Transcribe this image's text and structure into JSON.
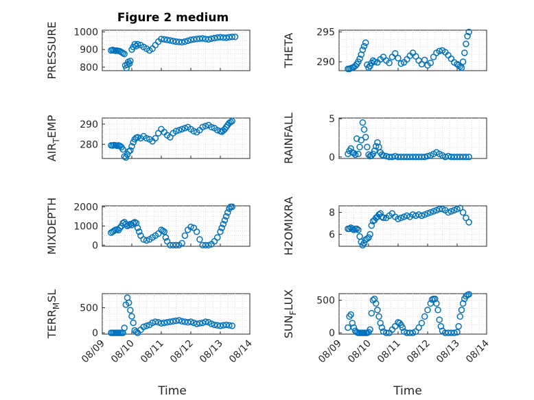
{
  "figure": {
    "title": "Figure 2 medium",
    "xlabel": "Time"
  },
  "colors": {
    "marker": "#0072bd",
    "axes": "#262626",
    "grid": "#dcdcdc"
  },
  "chart_data": [
    {
      "type": "scatter",
      "ylabel": "PRESSURE",
      "ylim": [
        780,
        1010
      ],
      "yticks": [
        800,
        900,
        1000
      ],
      "xlim": [
        9,
        14
      ],
      "grid": true,
      "series": [
        {
          "x": [
            9.3,
            9.35,
            9.4,
            9.45,
            9.5,
            9.55,
            9.6,
            9.65,
            9.7,
            9.75,
            9.78,
            9.82,
            9.85,
            9.88,
            9.92,
            9.95,
            10.0,
            10.05,
            10.1,
            10.15,
            10.2,
            10.3,
            10.4,
            10.5,
            10.6,
            10.7,
            10.8,
            10.9,
            11.0,
            11.1,
            11.2,
            11.3,
            11.4,
            11.5,
            11.6,
            11.7,
            11.8,
            11.9,
            12.0,
            12.1,
            12.2,
            12.3,
            12.4,
            12.5,
            12.6,
            12.7,
            12.8,
            12.9,
            13.0,
            13.1,
            13.2,
            13.3,
            13.4,
            13.5
          ],
          "y": [
            895,
            898,
            895,
            893,
            894,
            892,
            890,
            885,
            880,
            875,
            810,
            795,
            815,
            830,
            820,
            835,
            900,
            915,
            930,
            920,
            930,
            925,
            915,
            905,
            895,
            905,
            925,
            945,
            960,
            958,
            955,
            952,
            948,
            945,
            943,
            942,
            945,
            950,
            955,
            958,
            960,
            962,
            963,
            960,
            958,
            962,
            965,
            968,
            970,
            968,
            967,
            970,
            972,
            972
          ]
        }
      ]
    },
    {
      "type": "scatter",
      "ylabel": "THETA",
      "ylim": [
        288.5,
        295.3
      ],
      "yticks": [
        290,
        295
      ],
      "xlim": [
        9,
        14
      ],
      "grid": true,
      "series": [
        {
          "x": [
            9.3,
            9.35,
            9.4,
            9.45,
            9.5,
            9.55,
            9.6,
            9.65,
            9.7,
            9.75,
            9.8,
            9.85,
            9.9,
            9.95,
            10.0,
            10.05,
            10.1,
            10.15,
            10.2,
            10.3,
            10.4,
            10.5,
            10.6,
            10.7,
            10.8,
            10.9,
            11.0,
            11.1,
            11.2,
            11.3,
            11.4,
            11.5,
            11.6,
            11.7,
            11.8,
            11.9,
            12.0,
            12.1,
            12.2,
            12.3,
            12.4,
            12.5,
            12.6,
            12.7,
            12.8,
            12.9,
            13.0,
            13.05,
            13.1,
            13.15,
            13.2,
            13.25,
            13.3,
            13.35,
            13.4
          ],
          "y": [
            288.8,
            288.8,
            288.9,
            289.0,
            289.1,
            289.3,
            289.6,
            290.0,
            290.5,
            291.2,
            292.0,
            292.6,
            293.2,
            289.5,
            289.0,
            289.3,
            289.8,
            290.2,
            290.0,
            289.9,
            290.4,
            290.8,
            290.2,
            289.8,
            290.8,
            291.4,
            290.6,
            289.7,
            289.9,
            290.4,
            291.0,
            291.5,
            290.9,
            290.2,
            289.6,
            290.3,
            289.4,
            289.8,
            290.8,
            291.5,
            291.8,
            291.9,
            291.6,
            291.1,
            290.5,
            289.9,
            289.6,
            289.4,
            289.2,
            289.0,
            290.0,
            291.5,
            293.0,
            294.3,
            295.0
          ]
        }
      ]
    },
    {
      "type": "scatter",
      "ylabel": "AIR_TEMP",
      "ylim": [
        273,
        293
      ],
      "yticks": [
        280,
        290
      ],
      "xlim": [
        9,
        14
      ],
      "grid": true,
      "series": [
        {
          "x": [
            9.3,
            9.35,
            9.4,
            9.45,
            9.5,
            9.55,
            9.6,
            9.65,
            9.7,
            9.75,
            9.8,
            9.85,
            9.9,
            9.95,
            10.0,
            10.05,
            10.1,
            10.15,
            10.2,
            10.3,
            10.4,
            10.5,
            10.6,
            10.7,
            10.8,
            10.9,
            11.0,
            11.1,
            11.2,
            11.3,
            11.4,
            11.5,
            11.6,
            11.7,
            11.8,
            11.9,
            12.0,
            12.1,
            12.2,
            12.3,
            12.4,
            12.5,
            12.6,
            12.7,
            12.8,
            12.9,
            13.0,
            13.05,
            13.1,
            13.15,
            13.2,
            13.25,
            13.3,
            13.35,
            13.4
          ],
          "y": [
            279.5,
            279.4,
            279.6,
            279.5,
            279.3,
            279.5,
            279.2,
            278.6,
            277.5,
            274.0,
            273.5,
            275.0,
            276.5,
            277.0,
            279.0,
            281.0,
            282.5,
            283.2,
            283.5,
            283.0,
            284.0,
            283.0,
            282.5,
            281.5,
            283.0,
            285.5,
            287.5,
            286.0,
            284.5,
            283.5,
            285.5,
            286.5,
            287.0,
            287.5,
            288.0,
            288.5,
            287.5,
            286.5,
            286.0,
            287.0,
            288.5,
            289.0,
            289.5,
            288.5,
            288.0,
            287.0,
            286.5,
            286.2,
            286.8,
            287.5,
            288.5,
            289.5,
            290.5,
            291.0,
            291.5
          ]
        }
      ]
    },
    {
      "type": "scatter",
      "ylabel": "RAINFALL",
      "ylim": [
        -0.2,
        5.1
      ],
      "yticks": [
        0,
        5
      ],
      "xlim": [
        9,
        14
      ],
      "grid": true,
      "series": [
        {
          "x": [
            9.3,
            9.35,
            9.4,
            9.45,
            9.5,
            9.55,
            9.6,
            9.65,
            9.7,
            9.75,
            9.8,
            9.85,
            9.9,
            9.95,
            10.0,
            10.05,
            10.1,
            10.15,
            10.2,
            10.25,
            10.3,
            10.35,
            10.4,
            10.45,
            10.5,
            10.6,
            10.7,
            10.8,
            10.9,
            11.0,
            11.1,
            11.2,
            11.3,
            11.4,
            11.5,
            11.6,
            11.7,
            11.8,
            11.9,
            12.0,
            12.1,
            12.2,
            12.3,
            12.4,
            12.5,
            12.6,
            12.7,
            12.8,
            12.9,
            13.0,
            13.1,
            13.2,
            13.3,
            13.4
          ],
          "y": [
            0.4,
            0.8,
            1.1,
            0.6,
            0.5,
            0.3,
            2.4,
            0.4,
            1.3,
            2.2,
            4.5,
            3.6,
            2.6,
            1.3,
            0.3,
            0.1,
            0.2,
            0.4,
            0.8,
            1.4,
            1.9,
            1.3,
            0.6,
            0.3,
            0.2,
            0.1,
            0.0,
            0.0,
            0.1,
            0.0,
            0.0,
            0.0,
            0.0,
            0.0,
            0.0,
            0.0,
            0.0,
            0.0,
            0.0,
            0.1,
            0.2,
            0.4,
            0.6,
            0.4,
            0.2,
            0.0,
            0.1,
            0.0,
            0.0,
            0.0,
            0.0,
            0.0,
            0.0,
            0.0
          ]
        }
      ]
    },
    {
      "type": "scatter",
      "ylabel": "MIXDEPTH",
      "ylim": [
        -60,
        2050
      ],
      "yticks": [
        0,
        1000,
        2000
      ],
      "xlim": [
        9,
        14
      ],
      "grid": true,
      "series": [
        {
          "x": [
            9.3,
            9.35,
            9.4,
            9.45,
            9.5,
            9.55,
            9.6,
            9.65,
            9.7,
            9.75,
            9.8,
            9.85,
            9.9,
            9.95,
            10.0,
            10.05,
            10.1,
            10.15,
            10.2,
            10.25,
            10.3,
            10.4,
            10.5,
            10.6,
            10.7,
            10.8,
            10.9,
            11.0,
            11.05,
            11.1,
            11.15,
            11.2,
            11.3,
            11.4,
            11.5,
            11.6,
            11.7,
            11.8,
            11.9,
            12.0,
            12.1,
            12.2,
            12.3,
            12.4,
            12.5,
            12.6,
            12.7,
            12.8,
            12.9,
            13.0,
            13.05,
            13.1,
            13.15,
            13.2,
            13.25,
            13.3,
            13.35,
            13.4
          ],
          "y": [
            650,
            700,
            750,
            800,
            820,
            780,
            900,
            1000,
            1150,
            1200,
            1100,
            1000,
            1050,
            1100,
            1050,
            1150,
            1200,
            1150,
            900,
            700,
            500,
            300,
            250,
            300,
            400,
            500,
            600,
            800,
            750,
            700,
            400,
            200,
            0,
            0,
            0,
            0,
            100,
            500,
            800,
            950,
            900,
            700,
            300,
            0,
            0,
            0,
            50,
            200,
            400,
            700,
            900,
            1100,
            1300,
            1500,
            1700,
            1900,
            2000,
            2000
          ]
        }
      ]
    },
    {
      "type": "scatter",
      "ylabel": "H2OMIXRA",
      "ylim": [
        4.9,
        8.6
      ],
      "yticks": [
        6,
        8
      ],
      "xlim": [
        9,
        14
      ],
      "grid": true,
      "series": [
        {
          "x": [
            9.3,
            9.35,
            9.4,
            9.45,
            9.5,
            9.55,
            9.6,
            9.65,
            9.7,
            9.75,
            9.8,
            9.85,
            9.9,
            9.95,
            10.0,
            10.05,
            10.1,
            10.15,
            10.2,
            10.25,
            10.3,
            10.35,
            10.4,
            10.45,
            10.5,
            10.6,
            10.7,
            10.8,
            10.9,
            11.0,
            11.1,
            11.2,
            11.3,
            11.4,
            11.5,
            11.6,
            11.7,
            11.8,
            11.9,
            12.0,
            12.1,
            12.2,
            12.3,
            12.4,
            12.5,
            12.6,
            12.7,
            12.8,
            12.9,
            13.0,
            13.1,
            13.2,
            13.3,
            13.4
          ],
          "y": [
            6.5,
            6.5,
            6.6,
            6.5,
            6.4,
            6.5,
            6.5,
            6.4,
            5.8,
            5.3,
            5.0,
            5.2,
            5.5,
            5.6,
            5.7,
            6.0,
            6.8,
            7.2,
            7.3,
            7.5,
            7.6,
            7.8,
            7.9,
            7.6,
            7.5,
            7.5,
            7.7,
            7.9,
            7.6,
            7.4,
            7.5,
            7.6,
            7.7,
            7.6,
            7.8,
            7.7,
            7.8,
            7.7,
            7.8,
            7.9,
            8.0,
            8.1,
            8.2,
            8.3,
            8.3,
            8.2,
            8.0,
            8.1,
            8.2,
            8.3,
            8.4,
            8.0,
            7.5,
            7.1
          ]
        }
      ]
    },
    {
      "type": "scatter",
      "ylabel": "TERR_MSL",
      "ylim": [
        -25,
        780
      ],
      "yticks": [
        0,
        500
      ],
      "xlim": [
        9,
        14
      ],
      "grid": true,
      "series": [
        {
          "x": [
            9.3,
            9.35,
            9.4,
            9.45,
            9.5,
            9.55,
            9.6,
            9.65,
            9.7,
            9.75,
            9.8,
            9.85,
            9.9,
            9.95,
            10.0,
            10.05,
            10.1,
            10.15,
            10.2,
            10.3,
            10.4,
            10.5,
            10.6,
            10.7,
            10.8,
            10.9,
            11.0,
            11.1,
            11.2,
            11.3,
            11.4,
            11.5,
            11.6,
            11.7,
            11.8,
            11.9,
            12.0,
            12.1,
            12.2,
            12.3,
            12.4,
            12.5,
            12.6,
            12.7,
            12.8,
            12.9,
            13.0,
            13.1,
            13.2,
            13.3,
            13.4
          ],
          "y": [
            0,
            0,
            0,
            0,
            0,
            0,
            0,
            0,
            0,
            100,
            560,
            700,
            600,
            450,
            330,
            200,
            50,
            20,
            0,
            60,
            120,
            140,
            160,
            200,
            220,
            210,
            190,
            200,
            210,
            220,
            230,
            240,
            250,
            230,
            220,
            210,
            220,
            200,
            180,
            190,
            200,
            220,
            210,
            180,
            160,
            150,
            140,
            150,
            160,
            150,
            140
          ]
        }
      ]
    },
    {
      "type": "scatter",
      "ylabel": "SUN_FLUX",
      "ylim": [
        -20,
        600
      ],
      "yticks": [
        0,
        500
      ],
      "xlim": [
        9,
        14
      ],
      "grid": true,
      "series": [
        {
          "x": [
            9.3,
            9.35,
            9.4,
            9.45,
            9.5,
            9.55,
            9.6,
            9.65,
            9.7,
            9.75,
            9.8,
            9.85,
            9.9,
            9.95,
            10.0,
            10.05,
            10.1,
            10.15,
            10.2,
            10.25,
            10.3,
            10.35,
            10.4,
            10.45,
            10.5,
            10.6,
            10.7,
            10.8,
            10.9,
            11.0,
            11.05,
            11.1,
            11.15,
            11.2,
            11.3,
            11.4,
            11.5,
            11.6,
            11.7,
            11.8,
            11.9,
            12.0,
            12.1,
            12.15,
            12.2,
            12.25,
            12.3,
            12.35,
            12.4,
            12.45,
            12.5,
            12.6,
            12.7,
            12.8,
            12.9,
            13.0,
            13.05,
            13.1,
            13.15,
            13.2,
            13.25,
            13.3,
            13.35,
            13.4
          ],
          "y": [
            80,
            250,
            280,
            150,
            80,
            30,
            10,
            0,
            0,
            0,
            0,
            0,
            0,
            0,
            10,
            50,
            300,
            500,
            520,
            450,
            350,
            250,
            150,
            80,
            20,
            0,
            0,
            50,
            100,
            160,
            150,
            120,
            80,
            20,
            0,
            0,
            0,
            20,
            80,
            150,
            250,
            350,
            450,
            510,
            520,
            520,
            450,
            350,
            200,
            100,
            30,
            0,
            0,
            0,
            0,
            10,
            100,
            250,
            350,
            450,
            520,
            560,
            580,
            590
          ]
        }
      ]
    }
  ]
}
